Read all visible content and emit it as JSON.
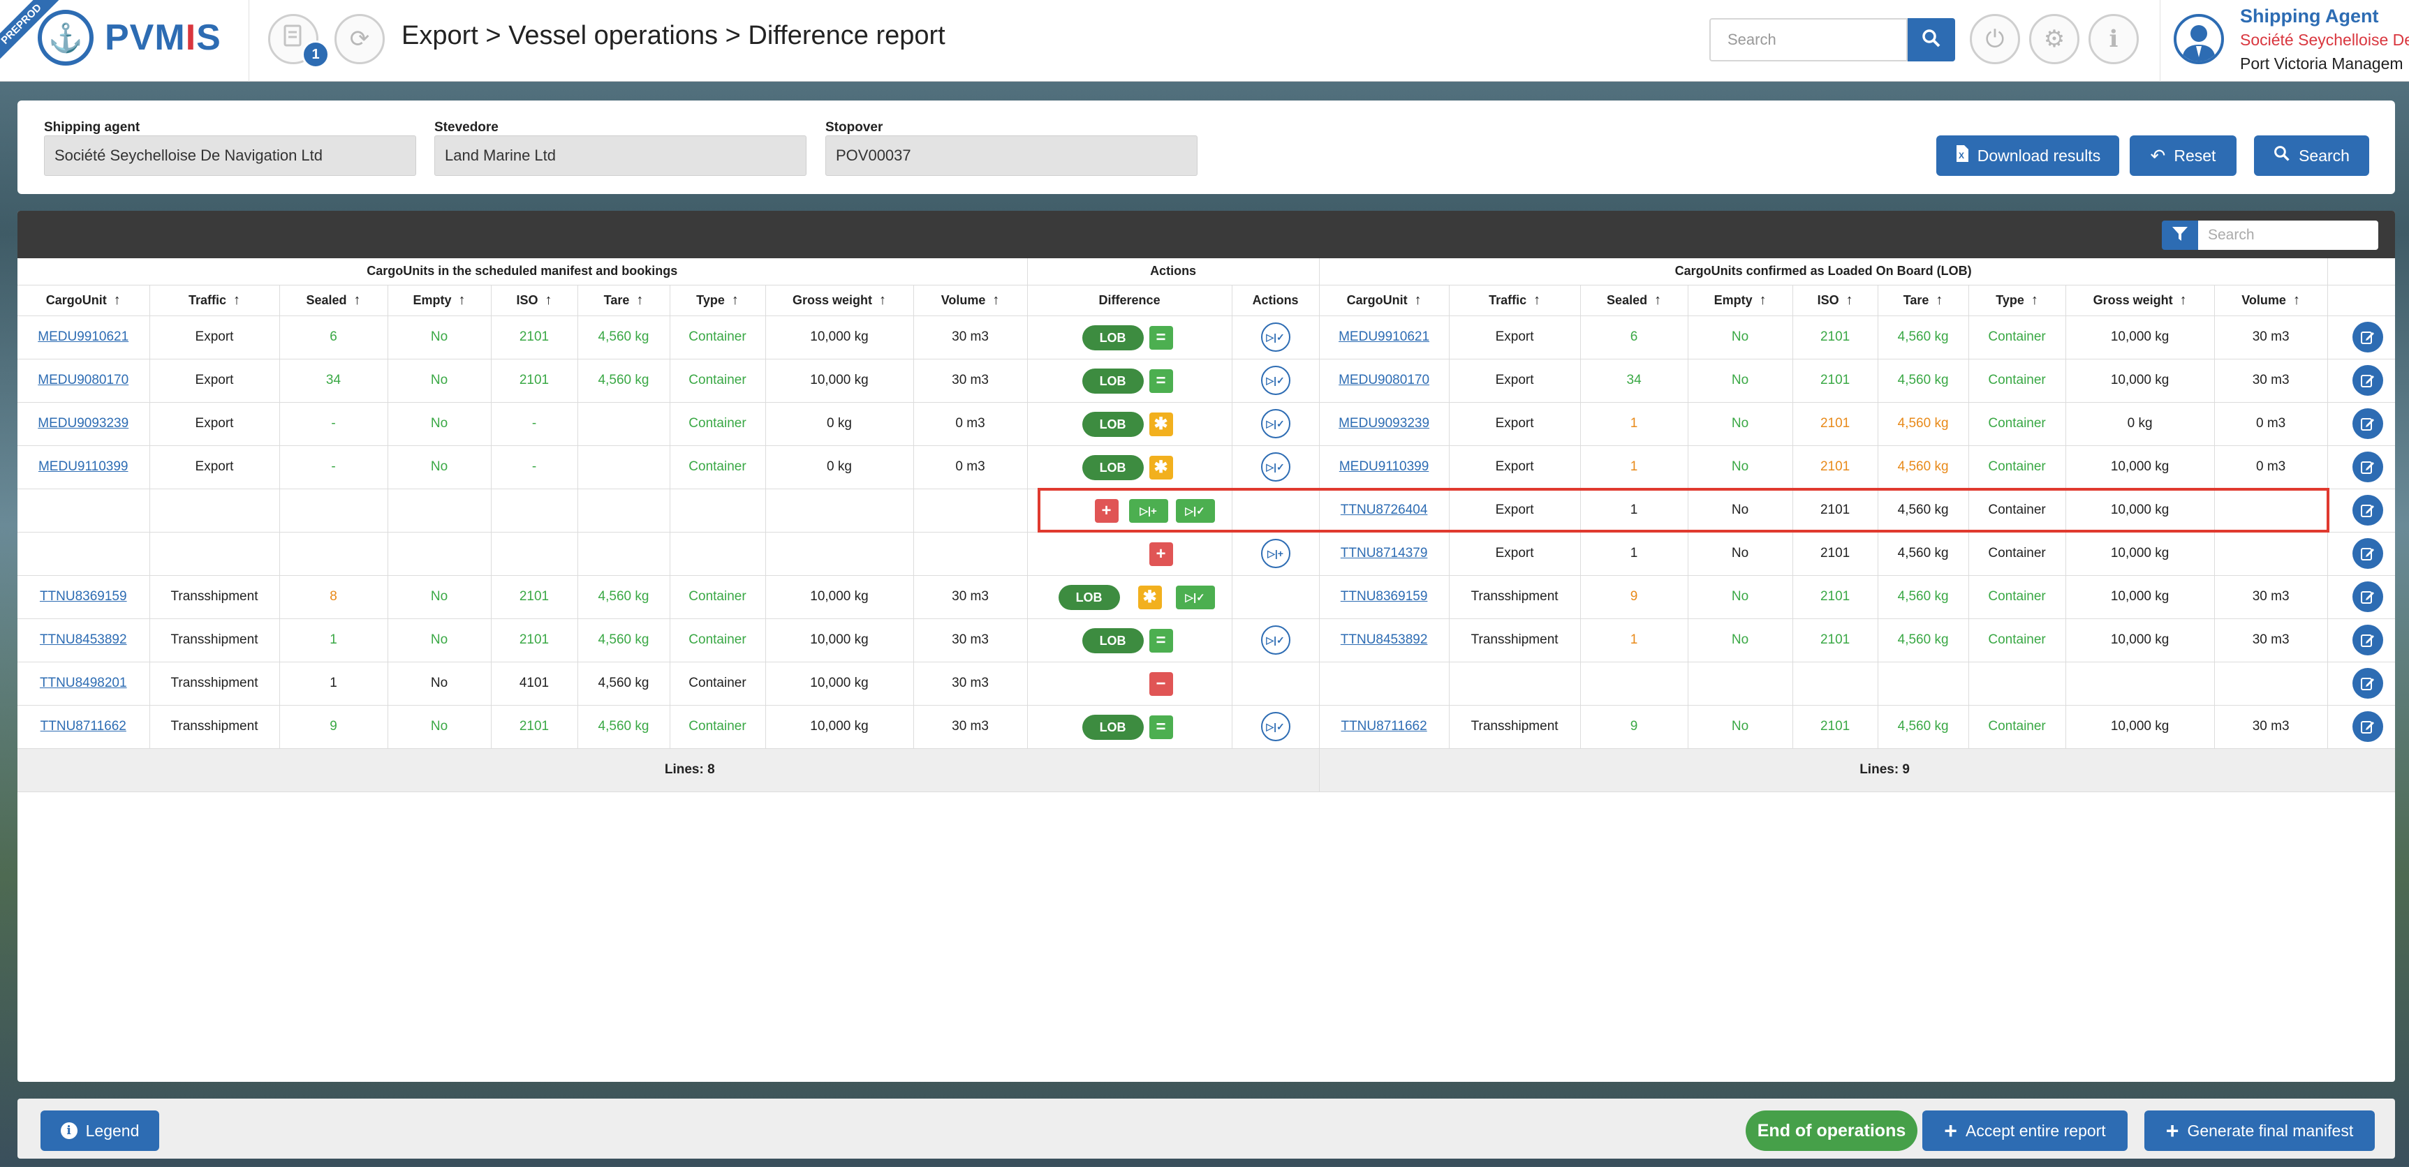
{
  "header": {
    "ribbon": "PREPROD",
    "logo_text_a": "PVM",
    "logo_text_b": "I",
    "logo_text_c": "S",
    "notification_count": "1",
    "breadcrumb": "Export > Vessel operations > Difference report",
    "search_placeholder": "Search",
    "user_role": "Shipping Agent",
    "user_company": "Société Seychelloise De",
    "user_org": "Port Victoria Managem"
  },
  "filters": {
    "shipping_agent_label": "Shipping agent",
    "shipping_agent_value": "Société Seychelloise De Navigation Ltd",
    "stevedore_label": "Stevedore",
    "stevedore_value": "Land Marine Ltd",
    "stopover_label": "Stopover",
    "stopover_value": "POV00037",
    "download_label": "Download results",
    "reset_label": "Reset",
    "search_label": "Search"
  },
  "table": {
    "search_placeholder": "Search",
    "group_left": "CargoUnits in the scheduled manifest and bookings",
    "group_actions": "Actions",
    "group_right": "CargoUnits confirmed as Loaded On Board (LOB)",
    "cols_left": [
      "CargoUnit",
      "Traffic",
      "Sealed",
      "Empty",
      "ISO",
      "Tare",
      "Type",
      "Gross weight",
      "Volume"
    ],
    "col_difference": "Difference",
    "col_actions": "Actions",
    "cols_right": [
      "CargoUnit",
      "Traffic",
      "Sealed",
      "Empty",
      "ISO",
      "Tare",
      "Type",
      "Gross weight",
      "Volume"
    ],
    "lob_label": "LOB",
    "lines_left": "Lines: 8",
    "lines_right": "Lines: 9",
    "rows": [
      {
        "l": [
          "MEDU9910621",
          "Export",
          "6",
          "No",
          "2101",
          "4,560 kg",
          "Container",
          "10,000 kg",
          "30 m3"
        ],
        "r": [
          "MEDU9910621",
          "Export",
          "6",
          "No",
          "2101",
          "4,560 kg",
          "Container",
          "10,000 kg",
          "30 m3"
        ]
      },
      {
        "l": [
          "MEDU9080170",
          "Export",
          "34",
          "No",
          "2101",
          "4,560 kg",
          "Container",
          "10,000 kg",
          "30 m3"
        ],
        "r": [
          "MEDU9080170",
          "Export",
          "34",
          "No",
          "2101",
          "4,560 kg",
          "Container",
          "10,000 kg",
          "30 m3"
        ]
      },
      {
        "l": [
          "MEDU9093239",
          "Export",
          "-",
          "No",
          "-",
          "",
          "Container",
          "0 kg",
          "0 m3"
        ],
        "r": [
          "MEDU9093239",
          "Export",
          "1",
          "No",
          "2101",
          "4,560 kg",
          "Container",
          "0 kg",
          "0 m3"
        ]
      },
      {
        "l": [
          "MEDU9110399",
          "Export",
          "-",
          "No",
          "-",
          "",
          "Container",
          "0 kg",
          "0 m3"
        ],
        "r": [
          "MEDU9110399",
          "Export",
          "1",
          "No",
          "2101",
          "4,560 kg",
          "Container",
          "10,000 kg",
          "0 m3"
        ]
      },
      {
        "l": [
          "",
          "",
          "",
          "",
          "",
          "",
          "",
          "",
          ""
        ],
        "r": [
          "TTNU8726404",
          "Export",
          "1",
          "No",
          "2101",
          "4,560 kg",
          "Container",
          "10,000 kg",
          ""
        ]
      },
      {
        "l": [
          "",
          "",
          "",
          "",
          "",
          "",
          "",
          "",
          ""
        ],
        "r": [
          "TTNU8714379",
          "Export",
          "1",
          "No",
          "2101",
          "4,560 kg",
          "Container",
          "10,000 kg",
          ""
        ]
      },
      {
        "l": [
          "TTNU8369159",
          "Transshipment",
          "8",
          "No",
          "2101",
          "4,560 kg",
          "Container",
          "10,000 kg",
          "30 m3"
        ],
        "r": [
          "TTNU8369159",
          "Transshipment",
          "9",
          "No",
          "2101",
          "4,560 kg",
          "Container",
          "10,000 kg",
          "30 m3"
        ]
      },
      {
        "l": [
          "TTNU8453892",
          "Transshipment",
          "1",
          "No",
          "2101",
          "4,560 kg",
          "Container",
          "10,000 kg",
          "30 m3"
        ],
        "r": [
          "TTNU8453892",
          "Transshipment",
          "1",
          "No",
          "2101",
          "4,560 kg",
          "Container",
          "10,000 kg",
          "30 m3"
        ]
      },
      {
        "l": [
          "TTNU8498201",
          "Transshipment",
          "1",
          "No",
          "4101",
          "4,560 kg",
          "Container",
          "10,000 kg",
          "30 m3"
        ],
        "r": [
          "",
          "",
          "",
          "",
          "",
          "",
          "",
          "",
          ""
        ]
      },
      {
        "l": [
          "TTNU8711662",
          "Transshipment",
          "9",
          "No",
          "2101",
          "4,560 kg",
          "Container",
          "10,000 kg",
          "30 m3"
        ],
        "r": [
          "TTNU8711662",
          "Transshipment",
          "9",
          "No",
          "2101",
          "4,560 kg",
          "Container",
          "10,000 kg",
          "30 m3"
        ]
      }
    ]
  },
  "footer": {
    "legend_label": "Legend",
    "end_ops_label": "End of operations",
    "accept_label": "Accept entire report",
    "generate_label": "Generate final manifest"
  },
  "colors": {
    "primary": "#2d6cb3",
    "green": "#3aa845",
    "orange": "#e88a1a",
    "red": "#e05555",
    "highlight": "#e03a2f"
  }
}
